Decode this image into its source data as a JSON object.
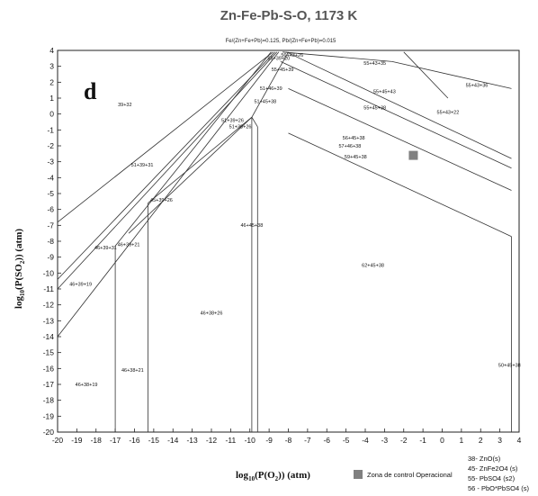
{
  "chart_data": {
    "type": "line",
    "title": "Zn-Fe-Pb-S-O, 1173 K",
    "subtitle": "Fe/(Zn+Fe+Pb)=0.125, Pb/(Zn+Fe+Pb)=0.015",
    "panel_label": "d",
    "xlabel_prefix": "log",
    "xlabel_sub": "10",
    "xlabel_rest": "(P(O",
    "xlabel_sub2": "2",
    "xlabel_end": ")) (atm)",
    "ylabel_prefix": "log",
    "ylabel_sub": "10",
    "ylabel_rest": "(P(SO",
    "ylabel_sub2": "2",
    "ylabel_end": ")) (atm)",
    "xlim": [
      -20,
      4
    ],
    "ylim": [
      -20,
      4
    ],
    "xticks": [
      -20,
      -19,
      -18,
      -17,
      -16,
      -15,
      -14,
      -13,
      -12,
      -11,
      -10,
      -9,
      -8,
      -7,
      -6,
      -5,
      -4,
      -3,
      -2,
      -1,
      0,
      1,
      2,
      3,
      4
    ],
    "yticks": [
      4,
      3,
      2,
      1,
      0,
      -1,
      -2,
      -3,
      -4,
      -5,
      -6,
      -7,
      -8,
      -9,
      -10,
      -11,
      -12,
      -13,
      -14,
      -15,
      -16,
      -17,
      -18,
      -19,
      -20
    ],
    "boundaries": [
      {
        "x": [
          -20,
          -8.8
        ],
        "y": [
          -6.8,
          3.9
        ]
      },
      {
        "x": [
          -20,
          -8.7
        ],
        "y": [
          -10.4,
          3.9
        ]
      },
      {
        "x": [
          -20,
          -8.6
        ],
        "y": [
          -11.0,
          3.9
        ]
      },
      {
        "x": [
          -20,
          -8.5
        ],
        "y": [
          -14.0,
          3.9
        ]
      },
      {
        "x": [
          -17.0,
          -8.9
        ],
        "y": [
          -8.3,
          3.9
        ]
      },
      {
        "x": [
          -16.3,
          -9.9
        ],
        "y": [
          -7.5,
          -0.2
        ]
      },
      {
        "x": [
          -15.3,
          -9.9
        ],
        "y": [
          -5.6,
          -0.2
        ]
      },
      {
        "x": [
          -9.9,
          -8.0
        ],
        "y": [
          -0.2,
          3.9
        ]
      },
      {
        "x": [
          -8.1,
          3.6
        ],
        "y": [
          3.9,
          -2.8
        ]
      },
      {
        "x": [
          -8.4,
          3.6
        ],
        "y": [
          3.3,
          -3.4
        ]
      },
      {
        "x": [
          -8.0,
          3.6
        ],
        "y": [
          1.6,
          -4.8
        ]
      },
      {
        "x": [
          -8.0,
          3.6
        ],
        "y": [
          -1.2,
          -7.7
        ]
      },
      {
        "x": [
          -8.3,
          -2.6
        ],
        "y": [
          3.9,
          3.3
        ]
      },
      {
        "x": [
          -2.6,
          3.6
        ],
        "y": [
          3.3,
          1.6
        ]
      },
      {
        "x": [
          -2.0,
          0.3
        ],
        "y": [
          3.9,
          1.0
        ]
      },
      {
        "x": [
          -9.9,
          -9.6
        ],
        "y": [
          -0.2,
          -0.8
        ]
      },
      {
        "x": [
          -9.6,
          -9.6
        ],
        "y": [
          -0.8,
          -20
        ]
      },
      {
        "x": [
          -9.9,
          -9.9
        ],
        "y": [
          -0.2,
          -20
        ]
      },
      {
        "x": [
          -17.0,
          -17.0
        ],
        "y": [
          -8.3,
          -20
        ]
      },
      {
        "x": [
          -15.3,
          -15.3
        ],
        "y": [
          -5.6,
          -20
        ]
      },
      {
        "x": [
          3.6,
          3.6
        ],
        "y": [
          -7.7,
          -20
        ]
      }
    ],
    "regions": [
      {
        "label": "55+43+35",
        "x": -3.5,
        "y": 3.1
      },
      {
        "label": "55+43+36",
        "x": 1.8,
        "y": 1.7
      },
      {
        "label": "55+45+43",
        "x": -3.0,
        "y": 1.3
      },
      {
        "label": "55+43+22",
        "x": 0.3,
        "y": 0.0
      },
      {
        "label": "55+45+38",
        "x": -3.5,
        "y": 0.3
      },
      {
        "label": "55+39+20",
        "x": -8.5,
        "y": 3.4
      },
      {
        "label": "56+43+26",
        "x": -7.8,
        "y": 3.6
      },
      {
        "label": "55+45+39",
        "x": -8.3,
        "y": 2.7
      },
      {
        "label": "51+46+39",
        "x": -8.9,
        "y": 1.5
      },
      {
        "label": "51+45+38",
        "x": -9.2,
        "y": 0.7
      },
      {
        "label": "39+32",
        "x": -16.5,
        "y": 0.5
      },
      {
        "label": "51+39+26",
        "x": -10.9,
        "y": -0.5
      },
      {
        "label": "51+38+26",
        "x": -10.5,
        "y": -0.9
      },
      {
        "label": "56+45+38",
        "x": -4.6,
        "y": -1.6
      },
      {
        "label": "57+46+38",
        "x": -4.8,
        "y": -2.1
      },
      {
        "label": "59+45+38",
        "x": -4.5,
        "y": -2.8
      },
      {
        "label": "51+39+31",
        "x": -15.6,
        "y": -3.3
      },
      {
        "label": "45+39+26",
        "x": -14.6,
        "y": -5.5
      },
      {
        "label": "46+45+38",
        "x": -9.9,
        "y": -7.1
      },
      {
        "label": "46+39+21",
        "x": -16.3,
        "y": -8.3
      },
      {
        "label": "46+39+31",
        "x": -17.5,
        "y": -8.5
      },
      {
        "label": "62+45+38",
        "x": -3.6,
        "y": -9.6
      },
      {
        "label": "46+39+19",
        "x": -18.8,
        "y": -10.8
      },
      {
        "label": "46+38+26",
        "x": -12.0,
        "y": -12.6
      },
      {
        "label": "46+38+21",
        "x": -16.1,
        "y": -16.2
      },
      {
        "label": "46+38+19",
        "x": -18.5,
        "y": -17.1
      },
      {
        "label": "50+45+38",
        "x": 3.5,
        "y": -15.9
      }
    ],
    "operational_zone": {
      "x": -1.5,
      "y": -2.6,
      "color": "#808080"
    }
  },
  "legend": {
    "zone_label": "Zona de control Operacional",
    "species": [
      "38- ZnO(s)",
      "45- ZnFe2O4 (s)",
      "55- PbSO4 (s2)",
      "56 - PbO*PbSO4 (s)"
    ]
  }
}
